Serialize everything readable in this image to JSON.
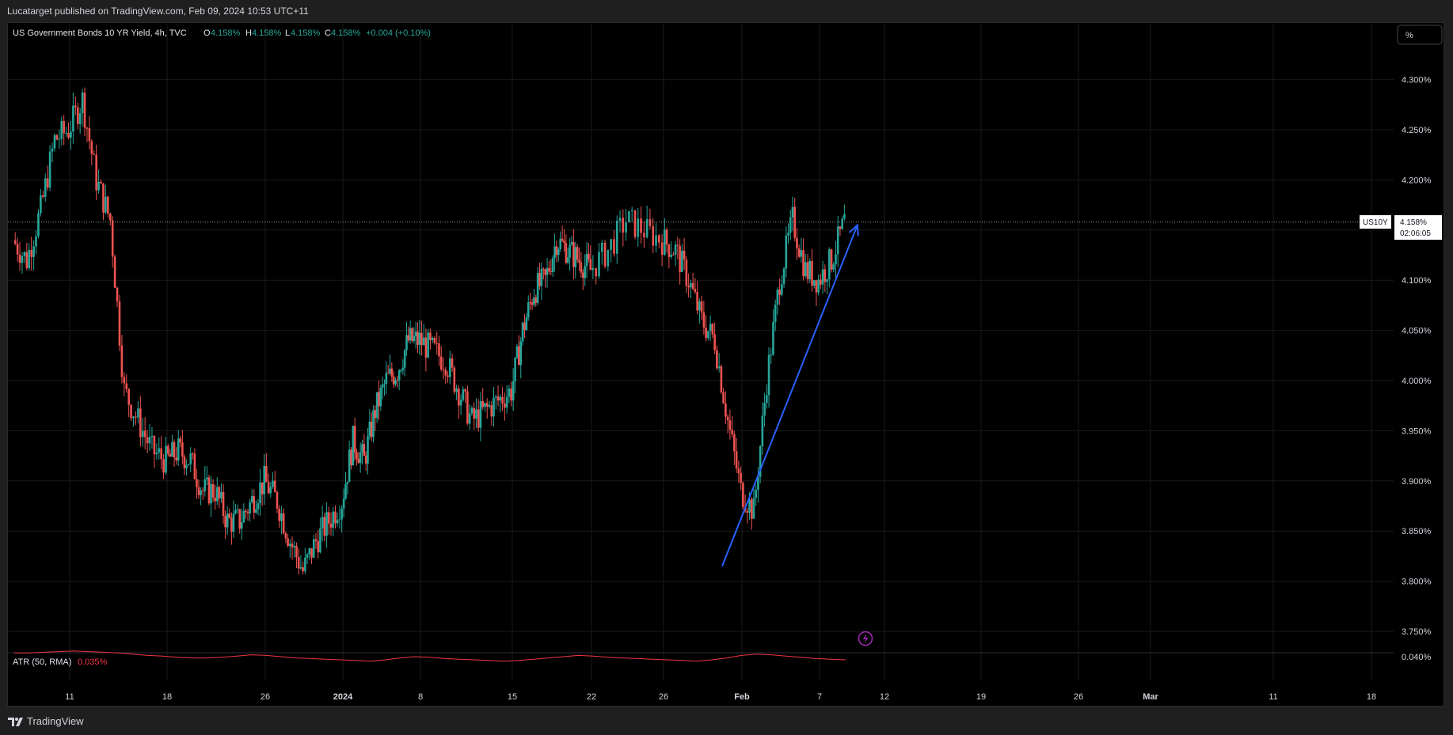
{
  "header": {
    "publish_line": "Lucatarget published on TradingView.com, Feb 09, 2024 10:53 UTC+11"
  },
  "legend": {
    "symbol_title": "US Government Bonds 10 YR Yield, 4h, TVC",
    "o_label": "O",
    "o_value": "4.158%",
    "h_label": "H",
    "h_value": "4.158%",
    "l_label": "L",
    "l_value": "4.158%",
    "c_label": "C",
    "c_value": "4.158%",
    "change": "+0.004 (+0.10%)"
  },
  "scale_button": "%",
  "price_tag": {
    "symbol": "US10Y",
    "price": "4.158%",
    "countdown": "02:06:05"
  },
  "indicator": {
    "label": "ATR (50, RMA)",
    "value": "0.035%",
    "axis_label": "0.040%"
  },
  "footer": {
    "brand": "TradingView"
  },
  "colors": {
    "up": "#26a69a",
    "down": "#ef5350",
    "arrow": "#2962ff",
    "atr": "#f23645",
    "background": "#000000",
    "grid": "#1a1a1a"
  },
  "chart_data": {
    "type": "candlestick",
    "title": "US Government Bonds 10 YR Yield, 4h, TVC",
    "interval": "4h",
    "y_unit": "%",
    "ylim": [
      3.725,
      4.335
    ],
    "y_ticks": [
      "4.300%",
      "4.250%",
      "4.200%",
      "4.150%",
      "4.100%",
      "4.050%",
      "4.000%",
      "3.950%",
      "3.900%",
      "3.850%",
      "3.800%",
      "3.750%"
    ],
    "x_ticks": [
      {
        "label": "11",
        "date": "2023-12-11"
      },
      {
        "label": "18",
        "date": "2023-12-18"
      },
      {
        "label": "26",
        "date": "2023-12-26"
      },
      {
        "label": "2024",
        "date": "2024-01-01"
      },
      {
        "label": "8",
        "date": "2024-01-08"
      },
      {
        "label": "15",
        "date": "2024-01-15"
      },
      {
        "label": "22",
        "date": "2024-01-22"
      },
      {
        "label": "26",
        "date": "2024-01-26"
      },
      {
        "label": "Feb",
        "date": "2024-02-01"
      },
      {
        "label": "7",
        "date": "2024-02-07"
      },
      {
        "label": "12",
        "date": "2024-02-12"
      },
      {
        "label": "19",
        "date": "2024-02-19"
      },
      {
        "label": "26",
        "date": "2024-02-26"
      },
      {
        "label": "Mar",
        "date": "2024-03-01"
      },
      {
        "label": "11",
        "date": "2024-03-11"
      },
      {
        "label": "18",
        "date": "2024-03-18"
      }
    ],
    "grid": true,
    "last_price": 4.158,
    "close_path": [
      [
        "2023-12-07",
        4.14
      ],
      [
        "2023-12-08",
        4.12
      ],
      [
        "2023-12-09",
        4.17
      ],
      [
        "2023-12-10",
        4.24
      ],
      [
        "2023-12-11",
        4.25
      ],
      [
        "2023-12-12",
        4.28
      ],
      [
        "2023-12-13",
        4.2
      ],
      [
        "2023-12-14",
        4.16
      ],
      [
        "2023-12-15",
        3.99
      ],
      [
        "2023-12-16",
        3.96
      ],
      [
        "2023-12-17",
        3.93
      ],
      [
        "2023-12-18",
        3.92
      ],
      [
        "2023-12-19",
        3.93
      ],
      [
        "2023-12-20",
        3.92
      ],
      [
        "2023-12-21",
        3.89
      ],
      [
        "2023-12-22",
        3.89
      ],
      [
        "2023-12-23",
        3.86
      ],
      [
        "2023-12-24",
        3.86
      ],
      [
        "2023-12-25",
        3.88
      ],
      [
        "2023-12-26",
        3.9
      ],
      [
        "2023-12-27",
        3.88
      ],
      [
        "2023-12-28",
        3.84
      ],
      [
        "2023-12-29",
        3.81
      ],
      [
        "2023-12-30",
        3.84
      ],
      [
        "2023-12-31",
        3.86
      ],
      [
        "2024-01-01",
        3.88
      ],
      [
        "2024-01-02",
        3.94
      ],
      [
        "2024-01-03",
        3.92
      ],
      [
        "2024-01-04",
        3.97
      ],
      [
        "2024-01-05",
        4.0
      ],
      [
        "2024-01-06",
        4.01
      ],
      [
        "2024-01-07",
        4.04
      ],
      [
        "2024-01-08",
        4.04
      ],
      [
        "2024-01-09",
        4.03
      ],
      [
        "2024-01-10",
        4.02
      ],
      [
        "2024-01-11",
        3.99
      ],
      [
        "2024-01-12",
        3.96
      ],
      [
        "2024-01-13",
        3.97
      ],
      [
        "2024-01-14",
        3.98
      ],
      [
        "2024-01-15",
        3.99
      ],
      [
        "2024-01-16",
        4.05
      ],
      [
        "2024-01-17",
        4.09
      ],
      [
        "2024-01-18",
        4.1
      ],
      [
        "2024-01-19",
        4.14
      ],
      [
        "2024-01-20",
        4.13
      ],
      [
        "2024-01-21",
        4.12
      ],
      [
        "2024-01-22",
        4.11
      ],
      [
        "2024-01-23",
        4.13
      ],
      [
        "2024-01-24",
        4.16
      ],
      [
        "2024-01-25",
        4.15
      ],
      [
        "2024-01-26",
        4.14
      ],
      [
        "2024-01-27",
        4.13
      ],
      [
        "2024-01-28",
        4.1
      ],
      [
        "2024-01-29",
        4.06
      ],
      [
        "2024-01-30",
        4.04
      ],
      [
        "2024-01-31",
        3.96
      ],
      [
        "2024-02-01",
        3.89
      ],
      [
        "2024-02-02",
        3.87
      ],
      [
        "2024-02-03",
        4.0
      ],
      [
        "2024-02-04",
        4.1
      ],
      [
        "2024-02-05",
        4.16
      ],
      [
        "2024-02-06",
        4.11
      ],
      [
        "2024-02-07",
        4.1
      ],
      [
        "2024-02-08",
        4.12
      ],
      [
        "2024-02-09",
        4.158
      ]
    ],
    "annotations": [
      {
        "type": "arrow",
        "from": [
          "2024-02-01",
          3.815
        ],
        "to": [
          "2024-02-09",
          4.155
        ]
      }
    ],
    "atr_series": {
      "name": "ATR (50, RMA)",
      "last_value": 0.035,
      "values": [
        0.046,
        0.046,
        0.047,
        0.048,
        0.049,
        0.048,
        0.047,
        0.046,
        0.044,
        0.042,
        0.041,
        0.039,
        0.038,
        0.038,
        0.039,
        0.041,
        0.043,
        0.042,
        0.04,
        0.038,
        0.037,
        0.036,
        0.035,
        0.034,
        0.033,
        0.035,
        0.038,
        0.04,
        0.039,
        0.037,
        0.036,
        0.035,
        0.034,
        0.033,
        0.034,
        0.036,
        0.038,
        0.04,
        0.042,
        0.041,
        0.039,
        0.038,
        0.037,
        0.036,
        0.035,
        0.034,
        0.033,
        0.035,
        0.038,
        0.042,
        0.044,
        0.043,
        0.041,
        0.039,
        0.037,
        0.036,
        0.035
      ]
    }
  }
}
